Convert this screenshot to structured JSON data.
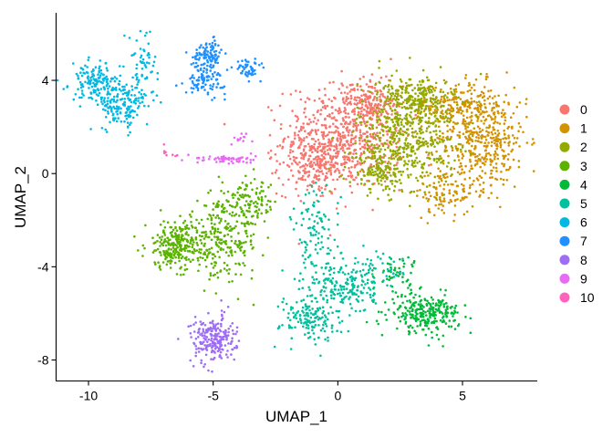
{
  "chart_data": {
    "type": "scatter",
    "title": "",
    "xlabel": "UMAP_1",
    "ylabel": "UMAP_2",
    "xlim": [
      -11.3,
      8
    ],
    "ylim": [
      -8.9,
      6.9
    ],
    "xticks": [
      -10,
      -5,
      0,
      5
    ],
    "yticks": [
      -8,
      -4,
      0,
      4
    ],
    "grid": false,
    "legend_position": "right",
    "series": [
      {
        "name": "0",
        "color": "#F8766D",
        "clusters": [
          {
            "cx": 0.3,
            "cy": 1.6,
            "sx": 1.2,
            "sy": 1.1,
            "n": 650
          },
          {
            "cx": -1.0,
            "cy": 0.3,
            "sx": 0.7,
            "sy": 0.6,
            "n": 180
          },
          {
            "cx": 1.3,
            "cy": 3.2,
            "sx": 0.5,
            "sy": 0.5,
            "n": 120
          }
        ]
      },
      {
        "name": "1",
        "color": "#D39200",
        "clusters": [
          {
            "cx": 5.8,
            "cy": 1.5,
            "sx": 0.9,
            "sy": 1.1,
            "n": 450
          },
          {
            "cx": 4.6,
            "cy": 2.9,
            "sx": 0.9,
            "sy": 0.5,
            "n": 180
          },
          {
            "cx": 4.3,
            "cy": -0.8,
            "sx": 0.6,
            "sy": 0.5,
            "n": 100
          }
        ]
      },
      {
        "name": "2",
        "color": "#93AA00",
        "clusters": [
          {
            "cx": 2.8,
            "cy": 1.8,
            "sx": 1.0,
            "sy": 1.1,
            "n": 500
          },
          {
            "cx": 3.2,
            "cy": 3.4,
            "sx": 0.7,
            "sy": 0.4,
            "n": 150
          },
          {
            "cx": 1.8,
            "cy": 0.1,
            "sx": 0.7,
            "sy": 0.5,
            "n": 150
          }
        ]
      },
      {
        "name": "3",
        "color": "#5BB300",
        "clusters": [
          {
            "cx": -6.5,
            "cy": -3.1,
            "sx": 0.6,
            "sy": 0.5,
            "n": 250
          },
          {
            "cx": -4.7,
            "cy": -2.9,
            "sx": 0.8,
            "sy": 0.8,
            "n": 250
          },
          {
            "cx": -3.6,
            "cy": -1.3,
            "sx": 0.6,
            "sy": 0.5,
            "n": 120
          }
        ]
      },
      {
        "name": "4",
        "color": "#00BA38",
        "clusters": [
          {
            "cx": 3.5,
            "cy": -6.0,
            "sx": 0.7,
            "sy": 0.4,
            "n": 260
          },
          {
            "cx": 2.4,
            "cy": -4.3,
            "sx": 0.4,
            "sy": 0.4,
            "n": 50
          }
        ]
      },
      {
        "name": "5",
        "color": "#00C19F",
        "clusters": [
          {
            "cx": -1.1,
            "cy": -6.2,
            "sx": 0.6,
            "sy": 0.5,
            "n": 150
          },
          {
            "cx": 0.3,
            "cy": -5.0,
            "sx": 0.6,
            "sy": 0.5,
            "n": 150
          },
          {
            "cx": -0.9,
            "cy": -2.8,
            "sx": 0.5,
            "sy": 1.1,
            "n": 120
          },
          {
            "cx": 1.4,
            "cy": -4.2,
            "sx": 0.6,
            "sy": 0.4,
            "n": 60
          }
        ]
      },
      {
        "name": "6",
        "color": "#00B9E3",
        "clusters": [
          {
            "cx": -9.7,
            "cy": 3.9,
            "sx": 0.5,
            "sy": 0.4,
            "n": 160
          },
          {
            "cx": -8.6,
            "cy": 2.9,
            "sx": 0.5,
            "sy": 0.5,
            "n": 160
          },
          {
            "cx": -7.8,
            "cy": 4.8,
            "sx": 0.3,
            "sy": 0.7,
            "n": 60
          }
        ]
      },
      {
        "name": "7",
        "color": "#1E90FF",
        "clusters": [
          {
            "cx": -5.2,
            "cy": 5.1,
            "sx": 0.3,
            "sy": 0.3,
            "n": 110
          },
          {
            "cx": -5.3,
            "cy": 4.0,
            "sx": 0.4,
            "sy": 0.3,
            "n": 90
          },
          {
            "cx": -3.6,
            "cy": 4.5,
            "sx": 0.25,
            "sy": 0.2,
            "n": 50
          }
        ]
      },
      {
        "name": "8",
        "color": "#9E6DF5",
        "clusters": [
          {
            "cx": -5.0,
            "cy": -7.1,
            "sx": 0.45,
            "sy": 0.5,
            "n": 220
          }
        ]
      },
      {
        "name": "9",
        "color": "#E76BF3",
        "clusters": [
          {
            "cx": -4.5,
            "cy": 0.6,
            "sx": 0.6,
            "sy": 0.1,
            "n": 60
          },
          {
            "cx": -3.8,
            "cy": 1.5,
            "sx": 0.2,
            "sy": 0.2,
            "n": 12
          }
        ]
      },
      {
        "name": "10",
        "color": "#FF62BC",
        "clusters": [
          {
            "cx": -6.7,
            "cy": 0.9,
            "sx": 0.15,
            "sy": 0.15,
            "n": 8
          }
        ]
      }
    ]
  }
}
